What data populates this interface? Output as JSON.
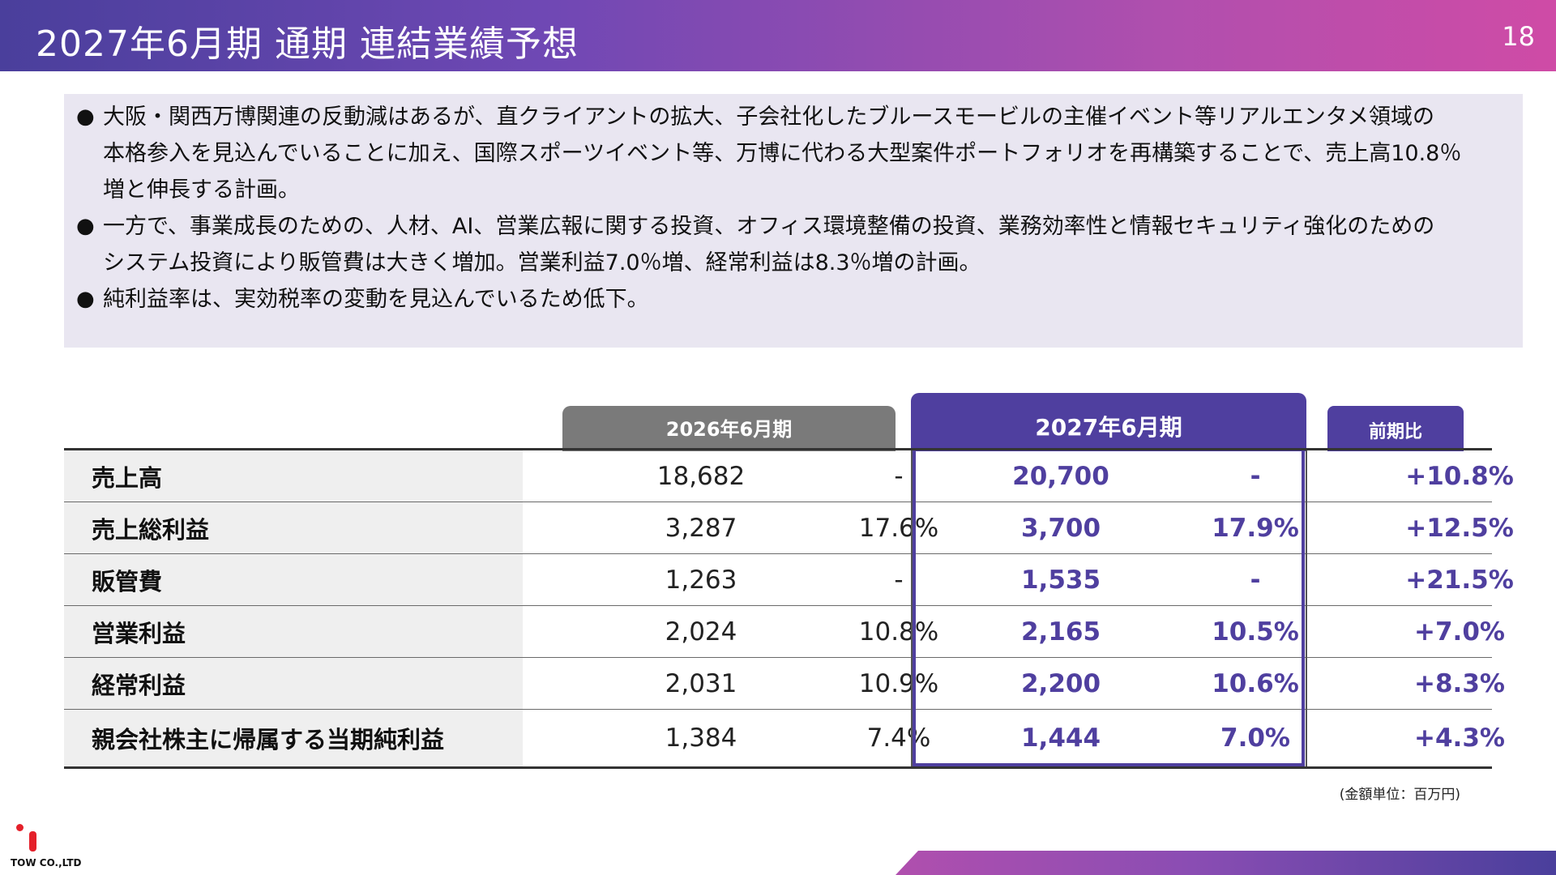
{
  "header": {
    "title": "2027年6月期 通期 連結業績予想",
    "page_number": "18"
  },
  "summary": {
    "bullets": [
      {
        "mark": "●",
        "lines": [
          "大阪・関西万博関連の反動減はあるが、直クライアントの拡大、子会社化したブルースモービルの主催イベント等リアルエンタメ領域の",
          "本格参入を見込んでいることに加え、国際スポーツイベント等、万博に代わる大型案件ポートフォリオを再構築することで、売上高10.8％",
          "増と伸長する計画。"
        ]
      },
      {
        "mark": "●",
        "lines": [
          "一方で、事業成長のための、人材、AI、営業広報に関する投資、オフィス環境整備の投資、業務効率性と情報セキュリティ強化のための",
          "システム投資により販管費は大きく増加。営業利益7.0％増、経常利益は8.3％増の計画。"
        ]
      },
      {
        "mark": "●",
        "lines": [
          "純利益率は、実効税率の変動を見込んでいるため低下。"
        ]
      }
    ]
  },
  "table": {
    "headers": {
      "fy2026": "2026年6月期",
      "fy2027": "2027年6月期",
      "ratio": "前期比"
    },
    "rows": [
      {
        "label": "売上高",
        "v2026": "18,682",
        "m2026": "-",
        "v2027": "20,700",
        "m2027": "-",
        "ratio": "+10.8%"
      },
      {
        "label": "売上総利益",
        "v2026": "3,287",
        "m2026": "17.6%",
        "v2027": "3,700",
        "m2027": "17.9%",
        "ratio": "+12.5%"
      },
      {
        "label": "販管費",
        "v2026": "1,263",
        "m2026": "-",
        "v2027": "1,535",
        "m2027": "-",
        "ratio": "+21.5%"
      },
      {
        "label": "営業利益",
        "v2026": "2,024",
        "m2026": "10.8%",
        "v2027": "2,165",
        "m2027": "10.5%",
        "ratio": "+7.0%"
      },
      {
        "label": "経常利益",
        "v2026": "2,031",
        "m2026": "10.9%",
        "v2027": "2,200",
        "m2027": "10.6%",
        "ratio": "+8.3%"
      },
      {
        "label": "親会社株主に帰属する当期純利益",
        "v2026": "1,384",
        "m2026": "7.4%",
        "v2027": "1,444",
        "m2027": "7.0%",
        "ratio": "+4.3%"
      }
    ],
    "unit_note": "(金額単位：百万円)"
  },
  "logo": {
    "text": "TOW CO.,LTD"
  },
  "colors": {
    "accent": "#4f3f9f",
    "header_gradient_start": "#4a3f9c",
    "header_gradient_end": "#cf4ba6",
    "summary_bg": "#e9e6f1",
    "logo_red": "#e4202a"
  }
}
